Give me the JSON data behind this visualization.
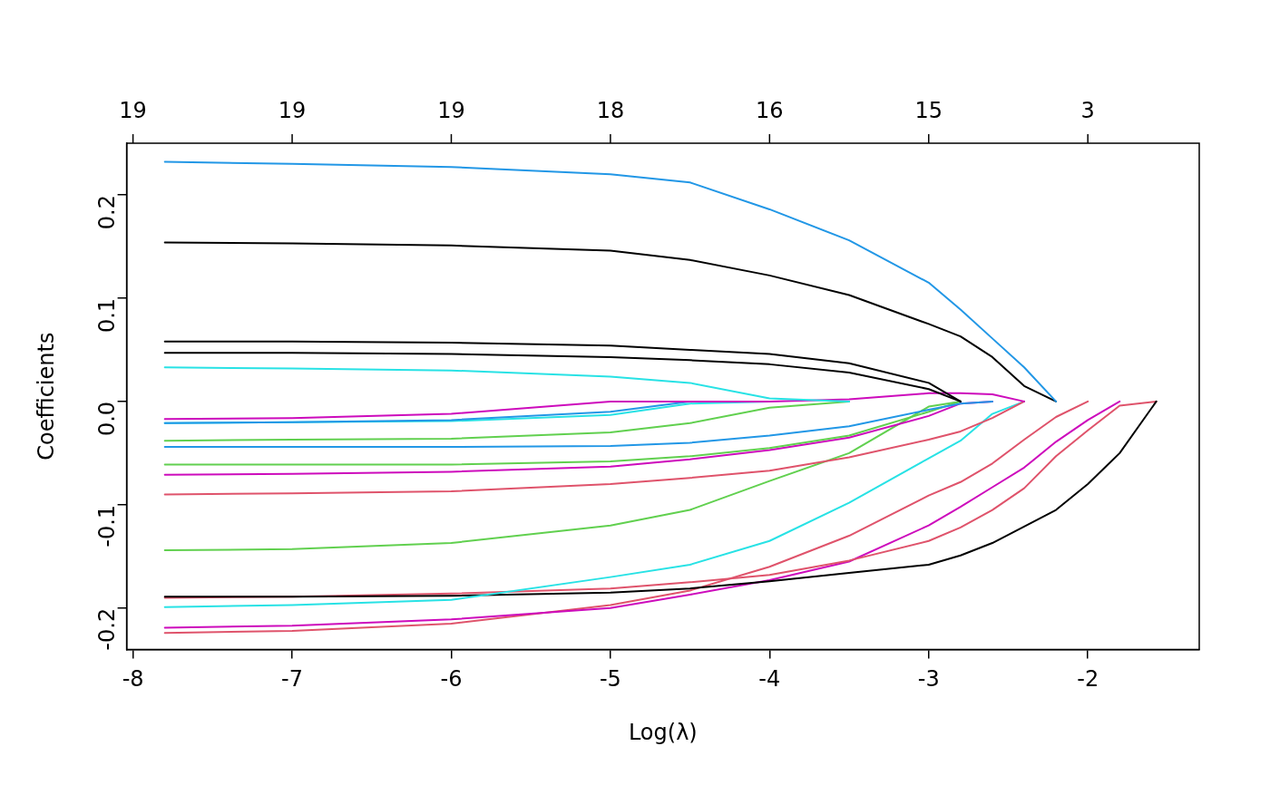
{
  "chart_data": {
    "type": "line",
    "xlabel": "Log(λ)",
    "ylabel": "Coefficients",
    "x": [
      -7.8,
      -7,
      -6,
      -5,
      -4.5,
      -4,
      -3.5,
      -3,
      -2.8,
      -2.6,
      -2.4,
      -2.2,
      -2,
      -1.8,
      -1.57
    ],
    "series": [
      {
        "color": "#2297e6",
        "values": [
          0.232,
          0.23,
          0.227,
          0.22,
          0.212,
          0.186,
          0.156,
          0.115,
          0.089,
          0.061,
          0.033,
          0,
          null,
          null,
          null
        ]
      },
      {
        "color": "#000000",
        "values": [
          0.154,
          0.153,
          0.151,
          0.146,
          0.137,
          0.122,
          0.103,
          0.075,
          0.063,
          0.043,
          0.015,
          0,
          null,
          null,
          null
        ]
      },
      {
        "color": "#000000",
        "values": [
          0.058,
          0.058,
          0.057,
          0.054,
          0.05,
          0.046,
          0.037,
          0.018,
          0,
          null,
          null,
          null,
          null,
          null,
          null
        ]
      },
      {
        "color": "#000000",
        "values": [
          0.047,
          0.047,
          0.046,
          0.043,
          0.04,
          0.036,
          0.028,
          0.012,
          0,
          null,
          null,
          null,
          null,
          null,
          null
        ]
      },
      {
        "color": "#28e2e5",
        "values": [
          0.033,
          0.032,
          0.03,
          0.024,
          0.018,
          0.003,
          0,
          null,
          null,
          null,
          null,
          null,
          null,
          null,
          null
        ]
      },
      {
        "color": "#cd0bbc",
        "values": [
          -0.017,
          -0.016,
          -0.012,
          0,
          0,
          0,
          0.002,
          0.008,
          0.008,
          0.007,
          0,
          null,
          null,
          null,
          null
        ]
      },
      {
        "color": "#2297e6",
        "values": [
          -0.021,
          -0.02,
          -0.018,
          -0.01,
          0,
          null,
          null,
          null,
          null,
          null,
          null,
          null,
          null,
          null,
          null
        ]
      },
      {
        "color": "#28e2e5",
        "values": [
          -0.021,
          -0.02,
          -0.019,
          -0.013,
          -0.002,
          0,
          null,
          null,
          null,
          null,
          null,
          null,
          null,
          null,
          null
        ]
      },
      {
        "color": "#61d04f",
        "values": [
          -0.038,
          -0.037,
          -0.036,
          -0.03,
          -0.021,
          -0.006,
          0,
          null,
          null,
          null,
          null,
          null,
          null,
          null,
          null
        ]
      },
      {
        "color": "#2297e6",
        "values": [
          -0.044,
          -0.044,
          -0.044,
          -0.043,
          -0.04,
          -0.033,
          -0.024,
          -0.008,
          -0.002,
          0,
          null,
          null,
          null,
          null,
          null
        ]
      },
      {
        "color": "#61d04f",
        "values": [
          -0.061,
          -0.061,
          -0.061,
          -0.058,
          -0.053,
          -0.045,
          -0.033,
          -0.01,
          0,
          null,
          null,
          null,
          null,
          null,
          null
        ]
      },
      {
        "color": "#cd0bbc",
        "values": [
          -0.071,
          -0.07,
          -0.068,
          -0.063,
          -0.056,
          -0.047,
          -0.035,
          -0.014,
          -0.002,
          0,
          null,
          null,
          null,
          null,
          null
        ]
      },
      {
        "color": "#df536b",
        "values": [
          -0.09,
          -0.089,
          -0.087,
          -0.08,
          -0.074,
          -0.067,
          -0.054,
          -0.037,
          -0.029,
          -0.016,
          0,
          null,
          null,
          null,
          null
        ]
      },
      {
        "color": "#61d04f",
        "values": [
          -0.144,
          -0.143,
          -0.137,
          -0.12,
          -0.105,
          -0.077,
          -0.05,
          -0.005,
          0,
          null,
          null,
          null,
          null,
          null,
          null
        ]
      },
      {
        "color": "#28e2e5",
        "values": [
          -0.199,
          -0.197,
          -0.192,
          -0.17,
          -0.158,
          -0.135,
          -0.098,
          -0.055,
          -0.038,
          -0.012,
          0,
          null,
          null,
          null,
          null
        ]
      },
      {
        "color": "#000000",
        "values": [
          -0.189,
          -0.189,
          -0.188,
          -0.185,
          -0.181,
          -0.174,
          -0.166,
          -0.158,
          -0.149,
          -0.137,
          -0.121,
          -0.105,
          -0.08,
          -0.05,
          0
        ]
      },
      {
        "color": "#df536b",
        "values": [
          -0.19,
          -0.189,
          -0.186,
          -0.181,
          -0.175,
          -0.168,
          -0.154,
          -0.135,
          -0.122,
          -0.105,
          -0.084,
          -0.053,
          -0.028,
          -0.004,
          0
        ]
      },
      {
        "color": "#cd0bbc",
        "values": [
          -0.219,
          -0.217,
          -0.211,
          -0.2,
          -0.187,
          -0.173,
          -0.155,
          -0.12,
          -0.102,
          -0.083,
          -0.064,
          -0.039,
          -0.018,
          0,
          null
        ]
      },
      {
        "color": "#df536b",
        "values": [
          -0.224,
          -0.222,
          -0.215,
          -0.197,
          -0.183,
          -0.16,
          -0.13,
          -0.091,
          -0.078,
          -0.06,
          -0.037,
          -0.015,
          0,
          null,
          null
        ]
      }
    ],
    "xlim": [
      -8.04,
      -1.3
    ],
    "xticks": [
      -8,
      -7,
      -6,
      -5,
      -4,
      -3,
      -2
    ],
    "annotations": [
      "19",
      "19",
      "19",
      "18",
      "16",
      "15",
      "3"
    ],
    "ylim": [
      -0.24,
      0.25
    ],
    "yticks": [
      -0.2,
      -0.1,
      {
        "value": 0,
        "label": "0.0"
      },
      0.1,
      0.2
    ],
    "marker": "none",
    "line_style": "solid",
    "grid": false,
    "legend": false
  }
}
